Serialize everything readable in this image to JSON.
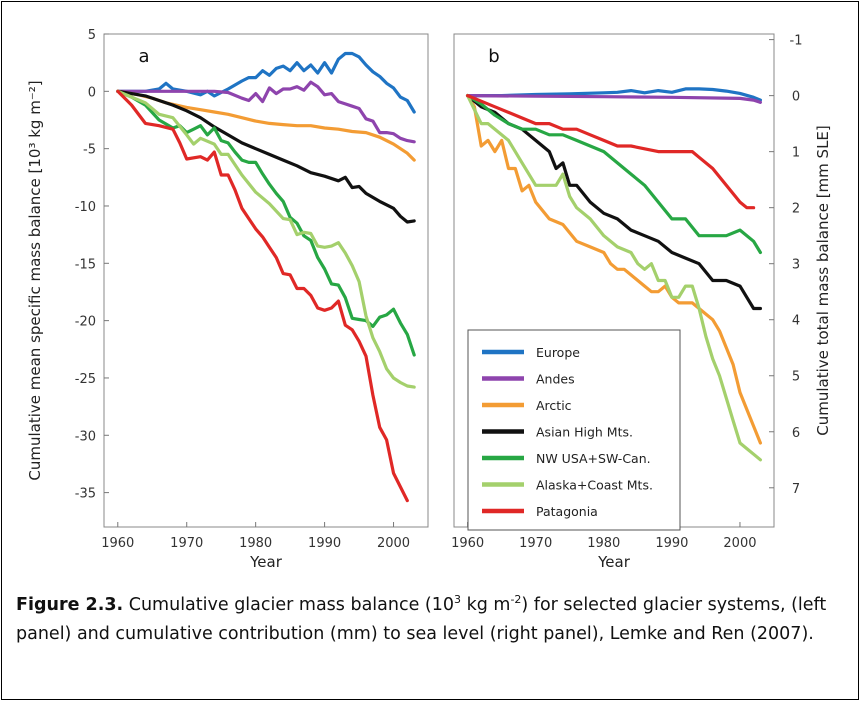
{
  "caption": {
    "label": "Figure 2.3.",
    "text_before_sup1": " Cumulative glacier mass balance (10",
    "sup1": "3",
    "text_mid": " kg m",
    "sup2": "-2",
    "text_after": ") for selected glacier systems, (left panel) and cumulative contribution (mm) to sea level (right panel), Lemke and Ren (2007)."
  },
  "chart_data": [
    {
      "panel": "a",
      "type": "line",
      "xlabel": "Year",
      "ylabel": "Cumulative mean specific mass balance [10³ kg m⁻²]",
      "xlim": [
        1958,
        2005
      ],
      "ylim": [
        -38,
        5
      ],
      "xticks": [
        1960,
        1970,
        1980,
        1990,
        2000
      ],
      "yticks": [
        5,
        0,
        -5,
        -10,
        -15,
        -20,
        -25,
        -30,
        -35
      ],
      "grid": false,
      "series": [
        {
          "name": "Europe",
          "color": "#1f74c4",
          "x": [
            1960,
            1962,
            1964,
            1966,
            1967,
            1968,
            1970,
            1972,
            1973,
            1974,
            1976,
            1978,
            1979,
            1980,
            1981,
            1982,
            1983,
            1984,
            1985,
            1986,
            1987,
            1988,
            1989,
            1990,
            1991,
            1992,
            1993,
            1994,
            1995,
            1996,
            1997,
            1998,
            1999,
            2000,
            2001,
            2002,
            2003
          ],
          "y": [
            0,
            0,
            0,
            0.2,
            0.7,
            0.2,
            0,
            -0.3,
            0,
            -0.4,
            0.2,
            0.9,
            1.2,
            1.2,
            1.8,
            1.4,
            2.0,
            2.2,
            1.8,
            2.5,
            1.8,
            2.3,
            1.6,
            2.5,
            1.6,
            2.8,
            3.3,
            3.3,
            3.0,
            2.3,
            1.7,
            1.3,
            0.7,
            0.3,
            -0.5,
            -0.8,
            -1.8
          ]
        },
        {
          "name": "Andes",
          "color": "#8e44ad",
          "x": [
            1960,
            1965,
            1970,
            1974,
            1976,
            1978,
            1979,
            1980,
            1981,
            1982,
            1983,
            1984,
            1985,
            1986,
            1987,
            1988,
            1989,
            1990,
            1991,
            1992,
            1993,
            1994,
            1995,
            1996,
            1997,
            1998,
            1999,
            2000,
            2001,
            2002,
            2003
          ],
          "y": [
            0,
            0,
            0,
            0,
            -0.1,
            -0.6,
            -0.8,
            -0.2,
            -0.9,
            0.3,
            -0.2,
            0.2,
            0.2,
            0.4,
            0.1,
            0.8,
            0.4,
            -0.3,
            -0.2,
            -0.9,
            -1.1,
            -1.3,
            -1.5,
            -2.4,
            -2.6,
            -3.6,
            -3.6,
            -3.7,
            -4.1,
            -4.3,
            -4.4
          ]
        },
        {
          "name": "Arctic",
          "color": "#f39c34",
          "x": [
            1960,
            1963,
            1965,
            1967,
            1970,
            1972,
            1974,
            1976,
            1978,
            1980,
            1982,
            1984,
            1986,
            1988,
            1990,
            1992,
            1994,
            1996,
            1998,
            2000,
            2002,
            2003
          ],
          "y": [
            0,
            -0.3,
            -0.6,
            -1.0,
            -1.4,
            -1.6,
            -1.8,
            -2.0,
            -2.3,
            -2.6,
            -2.8,
            -2.9,
            -3.0,
            -3.0,
            -3.2,
            -3.3,
            -3.5,
            -3.6,
            -4.0,
            -4.6,
            -5.4,
            -6.0
          ]
        },
        {
          "name": "Asian High Mts.",
          "color": "#111111",
          "x": [
            1960,
            1962,
            1964,
            1966,
            1968,
            1970,
            1972,
            1974,
            1976,
            1978,
            1980,
            1982,
            1984,
            1986,
            1988,
            1990,
            1992,
            1993,
            1994,
            1995,
            1996,
            1998,
            2000,
            2001,
            2002,
            2003
          ],
          "y": [
            0,
            -0.2,
            -0.4,
            -0.8,
            -1.2,
            -1.7,
            -2.3,
            -3.1,
            -3.8,
            -4.5,
            -5.0,
            -5.5,
            -6.0,
            -6.5,
            -7.1,
            -7.4,
            -7.8,
            -7.5,
            -8.4,
            -8.3,
            -8.9,
            -9.6,
            -10.2,
            -10.9,
            -11.4,
            -11.3
          ]
        },
        {
          "name": "NW USA+SW-Can.",
          "color": "#27a744",
          "x": [
            1960,
            1962,
            1964,
            1966,
            1968,
            1969,
            1970,
            1971,
            1972,
            1973,
            1974,
            1975,
            1976,
            1977,
            1978,
            1979,
            1980,
            1981,
            1982,
            1983,
            1984,
            1985,
            1986,
            1987,
            1988,
            1989,
            1990,
            1991,
            1992,
            1993,
            1994,
            1995,
            1996,
            1997,
            1998,
            1999,
            2000,
            2001,
            2002,
            2003
          ],
          "y": [
            0,
            -0.5,
            -1.2,
            -2.5,
            -3.2,
            -3.0,
            -3.6,
            -3.3,
            -3.0,
            -3.8,
            -3.2,
            -4.3,
            -4.5,
            -5.3,
            -6.0,
            -6.2,
            -6.2,
            -7.2,
            -8.1,
            -8.9,
            -9.6,
            -11.0,
            -11.5,
            -12.6,
            -13.0,
            -14.5,
            -15.5,
            -16.8,
            -16.9,
            -18.0,
            -19.8,
            -19.9,
            -20.0,
            -20.5,
            -19.7,
            -19.5,
            -19.0,
            -20.2,
            -21.2,
            -23.0
          ]
        },
        {
          "name": "Alaska+Coast Mts.",
          "color": "#a4d06c",
          "x": [
            1960,
            1962,
            1964,
            1966,
            1968,
            1970,
            1971,
            1972,
            1974,
            1975,
            1976,
            1978,
            1980,
            1982,
            1984,
            1985,
            1986,
            1987,
            1988,
            1989,
            1990,
            1991,
            1992,
            1993,
            1994,
            1995,
            1996,
            1997,
            1998,
            1999,
            2000,
            2001,
            2002,
            2003
          ],
          "y": [
            0,
            -0.5,
            -1.0,
            -2.0,
            -2.3,
            -3.8,
            -4.6,
            -4.1,
            -4.6,
            -5.5,
            -5.5,
            -7.3,
            -8.8,
            -9.8,
            -11.1,
            -11.2,
            -12.5,
            -12.3,
            -12.4,
            -13.5,
            -13.6,
            -13.5,
            -13.2,
            -14.1,
            -15.2,
            -16.6,
            -19.6,
            -21.5,
            -22.7,
            -24.2,
            -25.0,
            -25.4,
            -25.7,
            -25.8
          ]
        },
        {
          "name": "Patagonia",
          "color": "#e02826",
          "x": [
            1960,
            1962,
            1964,
            1966,
            1968,
            1969,
            1970,
            1972,
            1973,
            1974,
            1975,
            1976,
            1977,
            1978,
            1979,
            1980,
            1981,
            1982,
            1983,
            1984,
            1985,
            1986,
            1987,
            1988,
            1989,
            1990,
            1991,
            1992,
            1993,
            1994,
            1995,
            1996,
            1997,
            1998,
            1999,
            2000,
            2001,
            2002
          ],
          "y": [
            0,
            -1.2,
            -2.8,
            -3.0,
            -3.3,
            -4.5,
            -5.9,
            -5.7,
            -6.0,
            -5.3,
            -7.3,
            -7.3,
            -8.6,
            -10.2,
            -11.1,
            -12.0,
            -12.7,
            -13.6,
            -14.5,
            -15.9,
            -16.0,
            -17.2,
            -17.2,
            -17.8,
            -18.9,
            -19.1,
            -18.9,
            -18.3,
            -20.4,
            -20.8,
            -21.8,
            -23.1,
            -26.5,
            -29.3,
            -30.4,
            -33.3,
            -34.5,
            -35.7
          ]
        }
      ]
    },
    {
      "panel": "b",
      "type": "line",
      "xlabel": "Year",
      "ylabel": "Cumulative total mass balance [mm SLE]",
      "xlim": [
        1958,
        2005
      ],
      "ylim": [
        7.7,
        -1.1
      ],
      "xticks": [
        1960,
        1970,
        1980,
        1990,
        2000
      ],
      "yticks": [
        -1,
        0,
        1,
        2,
        3,
        4,
        5,
        6,
        7
      ],
      "grid": false,
      "series": [
        {
          "name": "Europe",
          "color": "#1f74c4",
          "x": [
            1960,
            1965,
            1970,
            1975,
            1980,
            1982,
            1984,
            1986,
            1988,
            1990,
            1992,
            1994,
            1996,
            1998,
            2000,
            2002,
            2003
          ],
          "y": [
            0,
            0,
            -0.02,
            -0.03,
            -0.05,
            -0.06,
            -0.09,
            -0.05,
            -0.09,
            -0.06,
            -0.12,
            -0.12,
            -0.11,
            -0.08,
            -0.04,
            0.03,
            0.08
          ]
        },
        {
          "name": "Andes",
          "color": "#8e44ad",
          "x": [
            1960,
            1970,
            1980,
            1990,
            2000,
            2002,
            2003
          ],
          "y": [
            0,
            0.01,
            0.02,
            0.03,
            0.05,
            0.08,
            0.12
          ]
        },
        {
          "name": "Arctic",
          "color": "#f39c34",
          "x": [
            1960,
            1961,
            1962,
            1963,
            1964,
            1965,
            1966,
            1967,
            1968,
            1969,
            1970,
            1972,
            1974,
            1976,
            1978,
            1980,
            1981,
            1982,
            1983,
            1984,
            1985,
            1986,
            1987,
            1988,
            1989,
            1990,
            1991,
            1992,
            1993,
            1994,
            1995,
            1996,
            1997,
            1998,
            1999,
            2000,
            2001,
            2002,
            2003
          ],
          "y": [
            0,
            0.2,
            0.9,
            0.8,
            1.0,
            0.8,
            1.3,
            1.3,
            1.7,
            1.6,
            1.9,
            2.2,
            2.3,
            2.6,
            2.7,
            2.8,
            3.0,
            3.1,
            3.1,
            3.2,
            3.3,
            3.4,
            3.5,
            3.5,
            3.4,
            3.6,
            3.7,
            3.7,
            3.7,
            3.8,
            3.9,
            4.0,
            4.2,
            4.5,
            4.8,
            5.3,
            5.6,
            5.9,
            6.2
          ]
        },
        {
          "name": "Asian High Mts.",
          "color": "#111111",
          "x": [
            1960,
            1962,
            1964,
            1966,
            1968,
            1970,
            1972,
            1973,
            1974,
            1975,
            1976,
            1978,
            1980,
            1982,
            1984,
            1986,
            1988,
            1990,
            1992,
            1994,
            1996,
            1998,
            2000,
            2001,
            2002,
            2003
          ],
          "y": [
            0,
            0.2,
            0.3,
            0.5,
            0.6,
            0.8,
            1.0,
            1.3,
            1.2,
            1.6,
            1.6,
            1.9,
            2.1,
            2.2,
            2.4,
            2.5,
            2.6,
            2.8,
            2.9,
            3.0,
            3.3,
            3.3,
            3.4,
            3.6,
            3.8,
            3.8
          ]
        },
        {
          "name": "NW USA+SW-Can.",
          "color": "#27a744",
          "x": [
            1960,
            1962,
            1964,
            1966,
            1968,
            1970,
            1972,
            1974,
            1976,
            1978,
            1980,
            1982,
            1984,
            1986,
            1988,
            1990,
            1992,
            1994,
            1995,
            1996,
            1998,
            2000,
            2002,
            2003
          ],
          "y": [
            0,
            0.15,
            0.35,
            0.5,
            0.6,
            0.6,
            0.7,
            0.7,
            0.8,
            0.9,
            1.0,
            1.2,
            1.4,
            1.6,
            1.9,
            2.2,
            2.2,
            2.5,
            2.5,
            2.5,
            2.5,
            2.4,
            2.6,
            2.8
          ]
        },
        {
          "name": "Alaska+Coast Mts.",
          "color": "#a4d06c",
          "x": [
            1960,
            1962,
            1963,
            1964,
            1966,
            1968,
            1970,
            1972,
            1973,
            1974,
            1975,
            1976,
            1978,
            1980,
            1982,
            1984,
            1985,
            1986,
            1987,
            1988,
            1989,
            1990,
            1991,
            1992,
            1993,
            1994,
            1995,
            1996,
            1997,
            1998,
            1999,
            2000,
            2001,
            2002,
            2003
          ],
          "y": [
            0,
            0.5,
            0.5,
            0.6,
            0.8,
            1.2,
            1.6,
            1.6,
            1.6,
            1.4,
            1.8,
            2.0,
            2.2,
            2.5,
            2.7,
            2.8,
            3.0,
            3.1,
            3.0,
            3.3,
            3.3,
            3.6,
            3.6,
            3.4,
            3.4,
            3.8,
            4.3,
            4.7,
            5.0,
            5.4,
            5.8,
            6.2,
            6.3,
            6.4,
            6.5
          ]
        },
        {
          "name": "Patagonia",
          "color": "#e02826",
          "x": [
            1960,
            1962,
            1964,
            1966,
            1968,
            1970,
            1972,
            1974,
            1976,
            1978,
            1980,
            1982,
            1984,
            1986,
            1988,
            1990,
            1992,
            1993,
            1994,
            1996,
            1998,
            2000,
            2001,
            2002
          ],
          "y": [
            0,
            0.1,
            0.2,
            0.3,
            0.4,
            0.5,
            0.5,
            0.6,
            0.6,
            0.7,
            0.8,
            0.9,
            0.9,
            0.95,
            1.0,
            1.0,
            1.0,
            1.0,
            1.1,
            1.3,
            1.6,
            1.9,
            2.0,
            2.0
          ]
        }
      ]
    }
  ]
}
